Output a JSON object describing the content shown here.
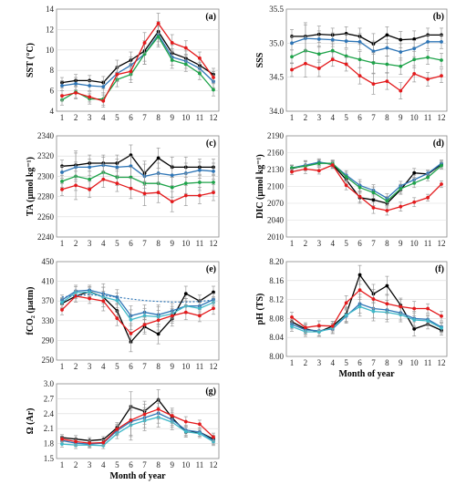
{
  "colors": {
    "black": "#000000",
    "blue": "#2e75b6",
    "green": "#1ea34a",
    "red": "#e31a1c",
    "teal": "#3fb8c8",
    "errorbar": "#9a9a9a",
    "grid": "#d9d9d9"
  },
  "chart_data": [
    {
      "id": "a",
      "type": "line",
      "panel_label": "(a)",
      "title": "",
      "ylabel": "SST (°C)",
      "xlabel": "",
      "x": [
        1,
        2,
        3,
        4,
        5,
        6,
        7,
        8,
        9,
        10,
        11,
        12
      ],
      "ylim": [
        4,
        14
      ],
      "yticks": [
        4,
        6,
        8,
        10,
        12,
        14
      ],
      "ytick_labels": [
        "4",
        "6",
        "8",
        "10",
        "12",
        "14"
      ],
      "show_error_bars": true,
      "series": [
        {
          "color": "black",
          "values": [
            6.8,
            7.0,
            7.0,
            6.8,
            8.3,
            9.0,
            9.9,
            11.8,
            9.7,
            9.2,
            8.5,
            7.6
          ],
          "err": [
            0.5,
            0.6,
            0.5,
            0.6,
            0.7,
            0.8,
            1.0,
            1.0,
            0.8,
            0.7,
            0.6,
            0.6
          ]
        },
        {
          "color": "blue",
          "values": [
            6.5,
            6.7,
            6.5,
            6.4,
            7.7,
            8.5,
            9.6,
            11.5,
            9.3,
            8.9,
            8.2,
            6.9
          ],
          "err": [
            0.5,
            0.6,
            0.5,
            0.6,
            0.7,
            0.8,
            1.0,
            1.0,
            0.8,
            0.7,
            0.6,
            0.6
          ]
        },
        {
          "color": "green",
          "values": [
            5.1,
            5.9,
            5.2,
            5.2,
            7.1,
            7.6,
            9.6,
            11.3,
            9.0,
            8.6,
            7.7,
            6.1
          ],
          "err": [
            0.5,
            0.6,
            0.5,
            0.6,
            0.7,
            0.8,
            1.0,
            1.0,
            0.8,
            0.7,
            0.6,
            0.6
          ]
        },
        {
          "color": "red",
          "values": [
            5.5,
            5.8,
            5.4,
            5.0,
            7.6,
            7.9,
            10.7,
            12.6,
            10.7,
            10.2,
            9.2,
            7.3
          ],
          "err": [
            0.5,
            0.6,
            0.5,
            0.6,
            0.7,
            0.8,
            1.0,
            1.0,
            0.8,
            0.7,
            0.6,
            0.6
          ]
        }
      ]
    },
    {
      "id": "b",
      "type": "line",
      "panel_label": "(b)",
      "title": "",
      "ylabel": "SSS",
      "xlabel": "",
      "x": [
        1,
        2,
        3,
        4,
        5,
        6,
        7,
        8,
        9,
        10,
        11,
        12
      ],
      "ylim": [
        34.0,
        35.5
      ],
      "yticks": [
        34.0,
        34.5,
        35.0,
        35.5
      ],
      "ytick_labels": [
        "34.0",
        "34.5",
        "35.0",
        "35.5"
      ],
      "show_error_bars": true,
      "series": [
        {
          "color": "black",
          "values": [
            35.1,
            35.1,
            35.13,
            35.12,
            35.14,
            35.1,
            34.99,
            35.12,
            35.05,
            35.06,
            35.12,
            35.12
          ],
          "err": [
            0.1,
            0.2,
            0.12,
            0.1,
            0.1,
            0.12,
            0.15,
            0.12,
            0.12,
            0.12,
            0.1,
            0.1
          ]
        },
        {
          "color": "blue",
          "values": [
            35.0,
            35.07,
            35.06,
            35.05,
            35.03,
            35.02,
            34.88,
            34.93,
            34.87,
            34.92,
            35.02,
            35.02
          ],
          "err": [
            0.1,
            0.2,
            0.12,
            0.1,
            0.1,
            0.12,
            0.15,
            0.12,
            0.12,
            0.12,
            0.1,
            0.1
          ]
        },
        {
          "color": "green",
          "values": [
            34.8,
            34.89,
            34.84,
            34.89,
            34.81,
            34.76,
            34.71,
            34.69,
            34.66,
            34.76,
            34.79,
            34.75
          ],
          "err": [
            0.1,
            0.2,
            0.12,
            0.1,
            0.1,
            0.12,
            0.15,
            0.12,
            0.12,
            0.12,
            0.1,
            0.1
          ]
        },
        {
          "color": "red",
          "values": [
            34.61,
            34.7,
            34.63,
            34.76,
            34.69,
            34.52,
            34.4,
            34.44,
            34.3,
            34.55,
            34.47,
            34.52
          ],
          "err": [
            0.1,
            0.2,
            0.12,
            0.1,
            0.1,
            0.12,
            0.15,
            0.12,
            0.12,
            0.12,
            0.1,
            0.1
          ]
        }
      ]
    },
    {
      "id": "c",
      "type": "line",
      "panel_label": "(c)",
      "title": "",
      "ylabel": "TA (µmol kg⁻¹)",
      "xlabel": "",
      "x": [
        1,
        2,
        3,
        4,
        5,
        6,
        7,
        8,
        9,
        10,
        11,
        12
      ],
      "ylim": [
        2240,
        2340
      ],
      "yticks": [
        2240,
        2260,
        2280,
        2300,
        2320,
        2340
      ],
      "ytick_labels": [
        "2240",
        "2260",
        "2280",
        "2300",
        "2320",
        "2340"
      ],
      "show_error_bars": true,
      "series": [
        {
          "color": "black",
          "values": [
            2310,
            2311,
            2313,
            2313,
            2313,
            2321,
            2303,
            2318,
            2309,
            2309,
            2309,
            2309
          ],
          "err": [
            6,
            14,
            8,
            8,
            8,
            10,
            12,
            10,
            10,
            10,
            8,
            8
          ]
        },
        {
          "color": "blue",
          "values": [
            2304,
            2309,
            2309,
            2311,
            2309,
            2310,
            2300,
            2303,
            2301,
            2303,
            2306,
            2305
          ],
          "err": [
            6,
            14,
            8,
            8,
            8,
            10,
            12,
            10,
            10,
            10,
            8,
            8
          ]
        },
        {
          "color": "green",
          "values": [
            2295,
            2300,
            2297,
            2304,
            2299,
            2299,
            2293,
            2293,
            2289,
            2293,
            2294,
            2294
          ],
          "err": [
            6,
            14,
            8,
            8,
            8,
            10,
            12,
            10,
            10,
            10,
            8,
            8
          ]
        },
        {
          "color": "red",
          "values": [
            2287,
            2291,
            2287,
            2297,
            2293,
            2288,
            2283,
            2284,
            2275,
            2281,
            2281,
            2284
          ],
          "err": [
            6,
            14,
            8,
            8,
            8,
            10,
            12,
            10,
            10,
            10,
            8,
            8
          ]
        }
      ]
    },
    {
      "id": "d",
      "type": "line",
      "panel_label": "(d)",
      "title": "",
      "ylabel": "DIC (µmol kg⁻¹)",
      "xlabel": "",
      "x": [
        1,
        2,
        3,
        4,
        5,
        6,
        7,
        8,
        9,
        10,
        11,
        12
      ],
      "ylim": [
        2010,
        2190
      ],
      "yticks": [
        2010,
        2040,
        2070,
        2100,
        2130,
        2160,
        2190
      ],
      "ytick_labels": [
        "2010",
        "2040",
        "2070",
        "2100",
        "2130",
        "2160",
        "2190"
      ],
      "show_error_bars": true,
      "series": [
        {
          "color": "black",
          "values": [
            2132,
            2137,
            2143,
            2139,
            2112,
            2080,
            2076,
            2070,
            2094,
            2124,
            2122,
            2139
          ],
          "err": [
            5,
            8,
            6,
            6,
            8,
            10,
            10,
            8,
            8,
            8,
            6,
            6
          ]
        },
        {
          "color": "blue",
          "values": [
            2133,
            2138,
            2143,
            2140,
            2120,
            2102,
            2093,
            2079,
            2101,
            2112,
            2123,
            2141
          ],
          "err": [
            5,
            8,
            6,
            6,
            8,
            10,
            10,
            8,
            8,
            8,
            6,
            6
          ]
        },
        {
          "color": "green",
          "values": [
            2133,
            2136,
            2141,
            2141,
            2117,
            2098,
            2089,
            2074,
            2096,
            2106,
            2116,
            2137
          ],
          "err": [
            5,
            8,
            6,
            6,
            8,
            10,
            10,
            8,
            8,
            8,
            6,
            6
          ]
        },
        {
          "color": "red",
          "values": [
            2126,
            2131,
            2128,
            2138,
            2102,
            2082,
            2062,
            2057,
            2064,
            2072,
            2080,
            2104
          ],
          "err": [
            5,
            8,
            6,
            6,
            8,
            10,
            10,
            8,
            8,
            8,
            6,
            6
          ]
        }
      ]
    },
    {
      "id": "e",
      "type": "line",
      "panel_label": "(e)",
      "title": "",
      "ylabel": "fCO₂ (µatm)",
      "xlabel": "",
      "x": [
        1,
        2,
        3,
        4,
        5,
        6,
        7,
        8,
        9,
        10,
        11,
        12
      ],
      "ylim": [
        250,
        450
      ],
      "yticks": [
        250,
        290,
        330,
        370,
        410,
        450
      ],
      "ytick_labels": [
        "250",
        "290",
        "330",
        "370",
        "410",
        "450"
      ],
      "show_error_bars": true,
      "series": [
        {
          "color": "black",
          "values": [
            365,
            380,
            389,
            378,
            350,
            287,
            318,
            303,
            334,
            385,
            370,
            388
          ],
          "err": [
            10,
            12,
            10,
            20,
            15,
            20,
            15,
            20,
            15,
            15,
            12,
            12
          ]
        },
        {
          "color": "blue",
          "values": [
            372,
            390,
            392,
            385,
            378,
            340,
            347,
            342,
            350,
            360,
            360,
            373
          ],
          "err": [
            10,
            12,
            10,
            20,
            15,
            20,
            15,
            20,
            15,
            15,
            12,
            12
          ]
        },
        {
          "color": "teal",
          "values": [
            367,
            387,
            388,
            378,
            371,
            332,
            340,
            338,
            344,
            360,
            355,
            367
          ],
          "err": [
            10,
            12,
            10,
            20,
            15,
            20,
            15,
            20,
            15,
            15,
            12,
            12
          ]
        },
        {
          "color": "red",
          "values": [
            352,
            380,
            375,
            370,
            335,
            304,
            322,
            331,
            340,
            347,
            340,
            355
          ],
          "err": [
            10,
            12,
            10,
            20,
            15,
            20,
            15,
            20,
            15,
            15,
            12,
            12
          ]
        },
        {
          "color": "blue",
          "dashed": true,
          "values": [
            378,
            381,
            383,
            381,
            378,
            374,
            371,
            369,
            368,
            368,
            369,
            372
          ],
          "err": []
        }
      ]
    },
    {
      "id": "f",
      "type": "line",
      "panel_label": "(f)",
      "title": "",
      "ylabel": "pH (TS)",
      "xlabel": "Month of year",
      "x": [
        1,
        2,
        3,
        4,
        5,
        6,
        7,
        8,
        9,
        10,
        11,
        12
      ],
      "ylim": [
        8.0,
        8.2
      ],
      "yticks": [
        8.0,
        8.04,
        8.08,
        8.12,
        8.16,
        8.2
      ],
      "ytick_labels": [
        "8.00",
        "8.04",
        "8.08",
        "8.12",
        "8.16",
        "8.20"
      ],
      "show_error_bars": true,
      "series": [
        {
          "color": "black",
          "values": [
            8.073,
            8.058,
            8.052,
            8.064,
            8.089,
            8.172,
            8.132,
            8.149,
            8.108,
            8.058,
            8.068,
            8.055
          ],
          "err": [
            0.01,
            0.01,
            0.01,
            0.01,
            0.015,
            0.02,
            0.02,
            0.02,
            0.015,
            0.015,
            0.01,
            0.01
          ]
        },
        {
          "color": "blue",
          "values": [
            8.068,
            8.056,
            8.054,
            8.058,
            8.085,
            8.111,
            8.101,
            8.098,
            8.092,
            8.08,
            8.078,
            8.062
          ],
          "err": [
            0.01,
            0.01,
            0.01,
            0.01,
            0.015,
            0.02,
            0.02,
            0.02,
            0.015,
            0.015,
            0.01,
            0.01
          ]
        },
        {
          "color": "teal",
          "values": [
            8.063,
            8.052,
            8.052,
            8.06,
            8.087,
            8.105,
            8.095,
            8.093,
            8.088,
            8.077,
            8.075,
            8.06
          ],
          "err": [
            0.01,
            0.01,
            0.01,
            0.01,
            0.015,
            0.02,
            0.02,
            0.02,
            0.015,
            0.015,
            0.01,
            0.01
          ]
        },
        {
          "color": "red",
          "values": [
            8.083,
            8.061,
            8.065,
            8.064,
            8.113,
            8.14,
            8.121,
            8.111,
            8.105,
            8.101,
            8.101,
            8.085
          ],
          "err": [
            0.01,
            0.01,
            0.01,
            0.01,
            0.015,
            0.02,
            0.02,
            0.02,
            0.015,
            0.015,
            0.01,
            0.01
          ]
        }
      ]
    },
    {
      "id": "g",
      "type": "line",
      "panel_label": "(g)",
      "title": "",
      "ylabel": "Ω (Ar)",
      "xlabel": "Month of year",
      "x": [
        1,
        2,
        3,
        4,
        5,
        6,
        7,
        8,
        9,
        10,
        11,
        12
      ],
      "ylim": [
        1.5,
        3.0
      ],
      "yticks": [
        1.5,
        1.8,
        2.1,
        2.4,
        2.7,
        3.0
      ],
      "ytick_labels": [
        "1.5",
        "1.8",
        "2.1",
        "2.4",
        "2.7",
        "3.0"
      ],
      "show_error_bars": true,
      "series": [
        {
          "color": "black",
          "values": [
            1.92,
            1.89,
            1.86,
            1.88,
            2.12,
            2.54,
            2.45,
            2.68,
            2.32,
            2.03,
            2.03,
            1.89
          ],
          "err": [
            0.06,
            0.07,
            0.06,
            0.06,
            0.1,
            0.3,
            0.2,
            0.2,
            0.15,
            0.1,
            0.08,
            0.08
          ]
        },
        {
          "color": "blue",
          "values": [
            1.86,
            1.81,
            1.79,
            1.81,
            2.06,
            2.24,
            2.32,
            2.41,
            2.28,
            2.07,
            2.03,
            1.86
          ],
          "err": [
            0.06,
            0.07,
            0.06,
            0.06,
            0.1,
            0.3,
            0.2,
            0.2,
            0.15,
            0.1,
            0.08,
            0.08
          ]
        },
        {
          "color": "teal",
          "values": [
            1.79,
            1.77,
            1.77,
            1.76,
            2.0,
            2.17,
            2.26,
            2.33,
            2.23,
            2.04,
            2.0,
            1.84
          ],
          "err": [
            0.06,
            0.07,
            0.06,
            0.06,
            0.1,
            0.3,
            0.2,
            0.2,
            0.15,
            0.1,
            0.08,
            0.08
          ]
        },
        {
          "color": "red",
          "values": [
            1.89,
            1.84,
            1.81,
            1.82,
            2.09,
            2.27,
            2.39,
            2.49,
            2.36,
            2.24,
            2.19,
            1.93
          ],
          "err": [
            0.06,
            0.07,
            0.06,
            0.06,
            0.1,
            0.3,
            0.2,
            0.2,
            0.15,
            0.1,
            0.08,
            0.08
          ]
        }
      ]
    }
  ]
}
